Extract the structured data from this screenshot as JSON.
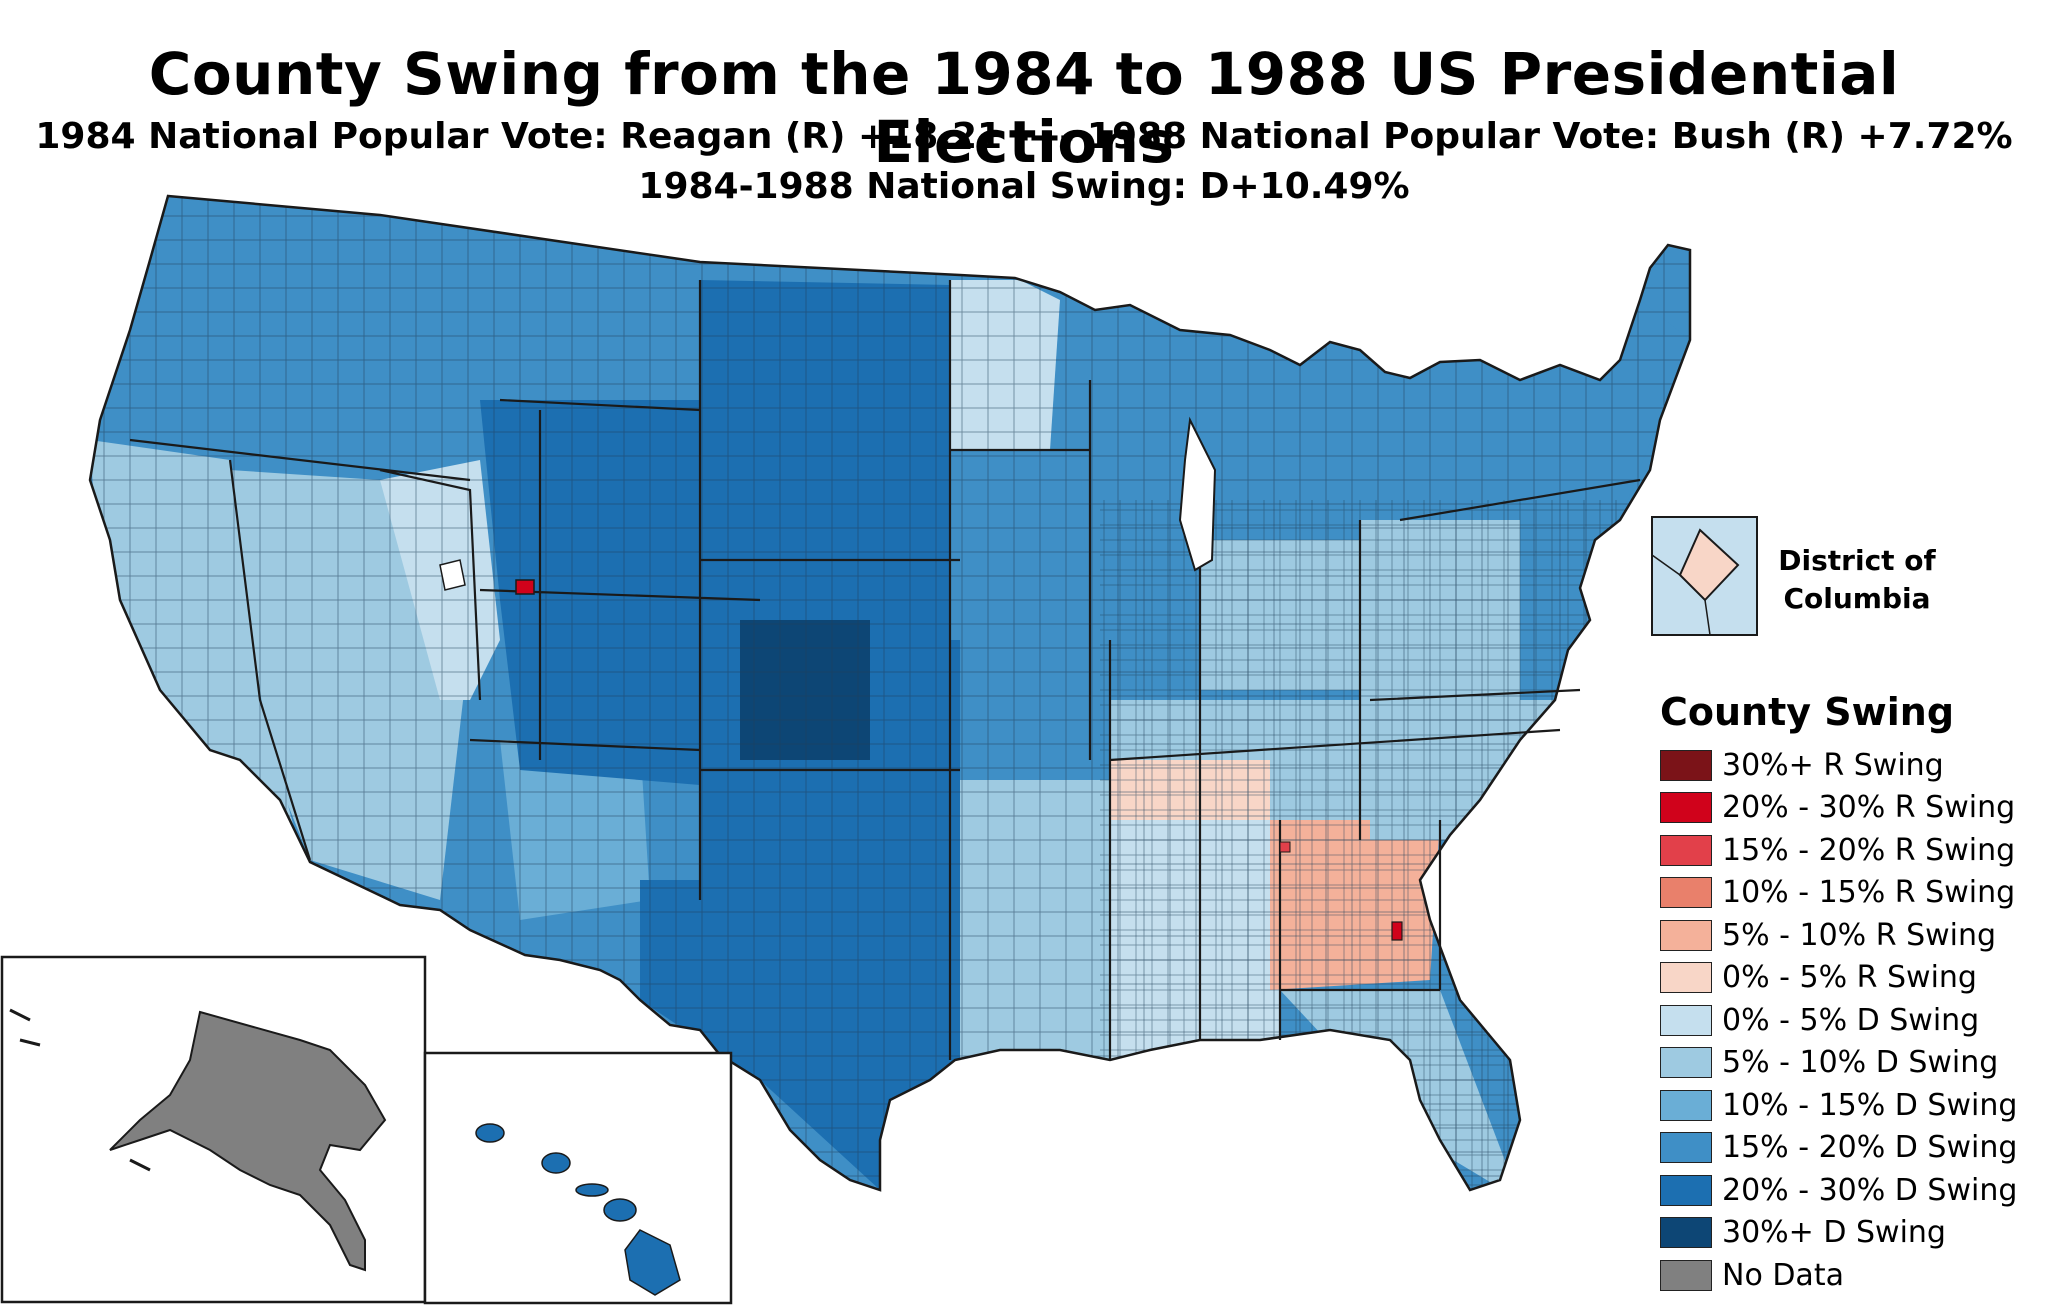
{
  "title": "County Swing from the 1984 to 1988 US Presidential Elections",
  "subtitle_line1": "1984 National Popular Vote: Reagan (R) +18.21 ---- 1988 National Popular Vote: Bush (R) +7.72%",
  "subtitle_line2": "1984-1988 National Swing: D+10.49%",
  "inset_dc_label": "District of Columbia",
  "legend": {
    "title": "County Swing",
    "items": [
      {
        "label": "30%+ R Swing",
        "color": "#7b1318"
      },
      {
        "label": "20% - 30% R Swing",
        "color": "#d0021b"
      },
      {
        "label": "15% - 20% R Swing",
        "color": "#e2404a"
      },
      {
        "label": "10% - 15% R Swing",
        "color": "#e9806b"
      },
      {
        "label": "5% - 10% R Swing",
        "color": "#f4b19a"
      },
      {
        "label": "0% - 5% R Swing",
        "color": "#f8d6c7"
      },
      {
        "label": "0% - 5% D Swing",
        "color": "#c5dfee"
      },
      {
        "label": "5% - 10% D Swing",
        "color": "#9ecae1"
      },
      {
        "label": "10% - 15% D Swing",
        "color": "#6aaed6"
      },
      {
        "label": "15% - 20% D Swing",
        "color": "#3f8fc6"
      },
      {
        "label": "20% - 30% D Swing",
        "color": "#1c6fb1"
      },
      {
        "label": "30%+ D Swing",
        "color": "#0d4675"
      },
      {
        "label": "No Data",
        "color": "#808080"
      }
    ]
  }
}
